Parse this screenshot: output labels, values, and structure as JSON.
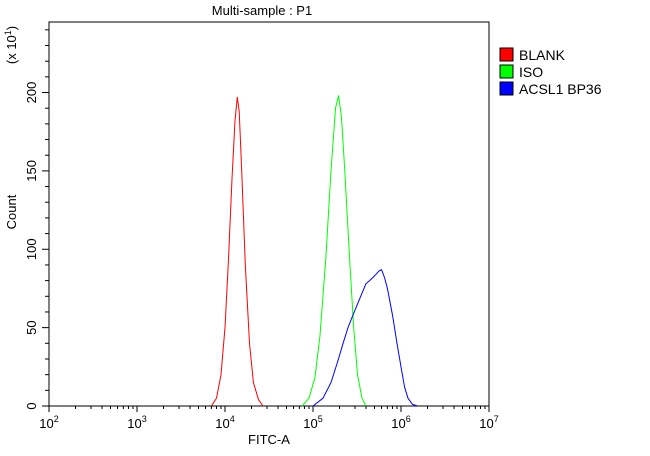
{
  "chart_data": {
    "type": "line",
    "title": "Multi-sample : P1",
    "xlabel": "FITC-A",
    "ylabel": "Count",
    "y_multiplier_label": "(x 10",
    "y_multiplier_exp": "1",
    "y_multiplier_close": ")",
    "x_scale": "log",
    "xlim": [
      100,
      10000000
    ],
    "ylim": [
      0,
      245
    ],
    "x_tick_bases": [
      "10",
      "10",
      "10",
      "10",
      "10",
      "10"
    ],
    "x_tick_exps": [
      "2",
      "3",
      "4",
      "5",
      "6",
      "7"
    ],
    "x_tick_values": [
      100,
      1000,
      10000,
      100000,
      1000000,
      10000000
    ],
    "y_ticks": [
      "0",
      "50",
      "100",
      "150",
      "200"
    ],
    "y_tick_values": [
      0,
      50,
      100,
      150,
      200
    ],
    "legend_position": "top-right",
    "grid": false,
    "series": [
      {
        "name": "BLANK",
        "color": "#ff0000",
        "x": [
          7000,
          8000,
          9000,
          10000,
          11000,
          12000,
          13000,
          13800,
          14500,
          15500,
          17000,
          19000,
          21000,
          24000,
          27000
        ],
        "y": [
          0,
          5,
          20,
          50,
          95,
          145,
          182,
          197,
          188,
          150,
          90,
          40,
          15,
          4,
          0
        ]
      },
      {
        "name": "ISO",
        "color": "#00ff00",
        "x": [
          75000,
          90000,
          105000,
          120000,
          140000,
          160000,
          180000,
          195000,
          210000,
          230000,
          260000,
          290000,
          320000,
          360000,
          400000
        ],
        "y": [
          0,
          5,
          18,
          45,
          95,
          150,
          190,
          198,
          185,
          150,
          95,
          50,
          20,
          5,
          0
        ]
      },
      {
        "name": "ACSL1 BP36",
        "color": "#0000ff",
        "x": [
          100000,
          130000,
          160000,
          190000,
          220000,
          250000,
          280000,
          320000,
          360000,
          400000,
          440000,
          480000,
          520000,
          560000,
          600000,
          650000,
          700000,
          800000,
          900000,
          1000000,
          1100000,
          1200000,
          1350000,
          1550000
        ],
        "y": [
          0,
          5,
          15,
          28,
          40,
          50,
          57,
          65,
          72,
          78,
          80,
          82,
          84,
          86,
          87,
          82,
          75,
          58,
          40,
          25,
          12,
          5,
          1,
          0
        ]
      }
    ]
  }
}
